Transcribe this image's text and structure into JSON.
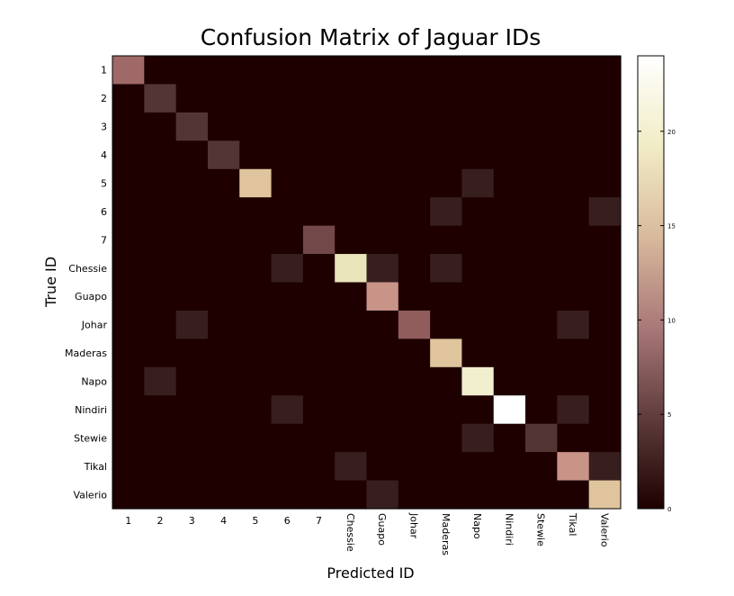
{
  "chart_data": {
    "type": "heatmap",
    "title": "Confusion Matrix of Jaguar IDs",
    "xlabel": "Predicted ID",
    "ylabel": "True ID",
    "categories": [
      "1",
      "2",
      "3",
      "4",
      "5",
      "6",
      "7",
      "Chessie",
      "Guapo",
      "Johar",
      "Maderas",
      "Napo",
      "Nindiri",
      "Stewie",
      "Tikal",
      "Valerio"
    ],
    "y_categories": [
      "1",
      "2",
      "3",
      "4",
      "5",
      "6",
      "7",
      "Chessie",
      "Guapo",
      "Johar",
      "Maderas",
      "Napo",
      "Nindiri",
      "Stewie",
      "Tikal",
      "Valerio"
    ],
    "values": [
      [
        9,
        0,
        0,
        0,
        0,
        0,
        0,
        0,
        0,
        0,
        0,
        0,
        0,
        0,
        0,
        0
      ],
      [
        0,
        4,
        0,
        0,
        0,
        0,
        0,
        0,
        0,
        0,
        0,
        0,
        0,
        0,
        0,
        0
      ],
      [
        0,
        0,
        4,
        0,
        0,
        0,
        0,
        0,
        0,
        0,
        0,
        0,
        0,
        0,
        0,
        0
      ],
      [
        0,
        0,
        0,
        4,
        0,
        0,
        0,
        0,
        0,
        0,
        0,
        0,
        0,
        0,
        0,
        0
      ],
      [
        0,
        0,
        0,
        0,
        16,
        0,
        0,
        0,
        0,
        0,
        0,
        2,
        0,
        0,
        0,
        0
      ],
      [
        0,
        0,
        0,
        0,
        0,
        0,
        0,
        0,
        0,
        0,
        2,
        0,
        0,
        0,
        0,
        2
      ],
      [
        0,
        0,
        0,
        0,
        0,
        0,
        6,
        0,
        0,
        0,
        0,
        0,
        0,
        0,
        0,
        0
      ],
      [
        0,
        0,
        0,
        0,
        0,
        2,
        0,
        19,
        2,
        0,
        2,
        0,
        0,
        0,
        0,
        0
      ],
      [
        0,
        0,
        0,
        0,
        0,
        0,
        0,
        0,
        12,
        0,
        0,
        0,
        0,
        0,
        0,
        0
      ],
      [
        0,
        0,
        2,
        0,
        0,
        0,
        0,
        0,
        0,
        8,
        0,
        0,
        0,
        0,
        2,
        0
      ],
      [
        0,
        0,
        0,
        0,
        0,
        0,
        0,
        0,
        0,
        0,
        16,
        0,
        0,
        0,
        0,
        0
      ],
      [
        0,
        2,
        0,
        0,
        0,
        0,
        0,
        0,
        0,
        0,
        0,
        21,
        0,
        0,
        0,
        0
      ],
      [
        0,
        0,
        0,
        0,
        0,
        2,
        0,
        0,
        0,
        0,
        0,
        0,
        24,
        0,
        2,
        0
      ],
      [
        0,
        0,
        0,
        0,
        0,
        0,
        0,
        0,
        0,
        0,
        0,
        2,
        0,
        4,
        0,
        0
      ],
      [
        0,
        0,
        0,
        0,
        0,
        0,
        0,
        2,
        0,
        0,
        0,
        0,
        0,
        0,
        12,
        2
      ],
      [
        0,
        0,
        0,
        0,
        0,
        0,
        0,
        0,
        2,
        0,
        0,
        0,
        0,
        0,
        0,
        16
      ]
    ],
    "colorbar": {
      "ticks": [
        "0",
        "5",
        "10",
        "15",
        "20"
      ],
      "range": [
        0,
        24
      ],
      "colormap": "pink"
    },
    "grid": false
  }
}
